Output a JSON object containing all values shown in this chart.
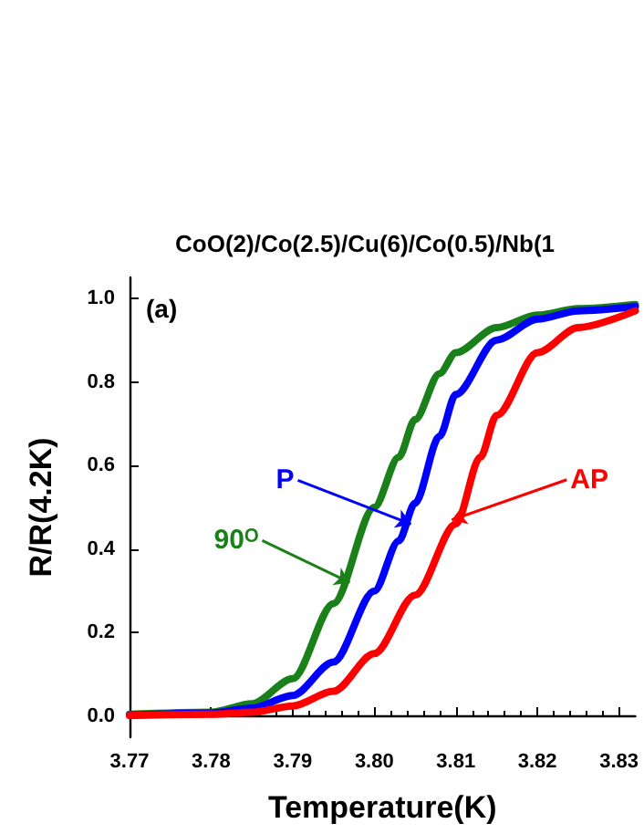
{
  "chart_data": {
    "type": "line",
    "title": "CoO(2)/Co(2.5)/Cu(6)/Co(0.5)/Nb(1",
    "xlabel": "Temperature(K)",
    "ylabel": "R/R(4.2K)",
    "xlim": [
      3.77,
      3.832
    ],
    "xticks": [
      {
        "value": 3.77,
        "label": "3.77"
      },
      {
        "value": 3.78,
        "label": "3.78"
      },
      {
        "value": 3.79,
        "label": "3.79"
      },
      {
        "value": 3.8,
        "label": "3.80"
      },
      {
        "value": 3.81,
        "label": "3.81"
      },
      {
        "value": 3.82,
        "label": "3.82"
      },
      {
        "value": 3.83,
        "label": "3.83"
      }
    ],
    "ylim": [
      -0.05,
      1.05
    ],
    "yticks": [
      {
        "value": 0,
        "label": "0.0"
      },
      {
        "value": 0.2,
        "label": "0.2"
      },
      {
        "value": 0.4,
        "label": "0.4"
      },
      {
        "value": 0.6,
        "label": "0.6"
      },
      {
        "value": 0.8,
        "label": "0.8"
      },
      {
        "value": 1,
        "label": "1.0"
      }
    ],
    "grid": false,
    "marker": "none",
    "line_style": "solid",
    "series": [
      {
        "color": "#1a801a",
        "x": [
          3.77,
          3.78,
          3.785,
          3.79,
          3.795,
          3.8,
          3.803,
          3.805,
          3.808,
          3.81,
          3.815,
          3.82,
          3.825,
          3.832
        ],
        "values": [
          0.005,
          0.01,
          0.03,
          0.09,
          0.27,
          0.5,
          0.62,
          0.71,
          0.82,
          0.87,
          0.93,
          0.96,
          0.975,
          0.985
        ]
      },
      {
        "color": "#0000ff",
        "x": [
          3.77,
          3.78,
          3.785,
          3.79,
          3.795,
          3.8,
          3.803,
          3.805,
          3.808,
          3.81,
          3.815,
          3.82,
          3.825,
          3.832
        ],
        "values": [
          0.003,
          0.008,
          0.02,
          0.05,
          0.13,
          0.3,
          0.42,
          0.51,
          0.67,
          0.77,
          0.9,
          0.95,
          0.97,
          0.98
        ]
      },
      {
        "color": "#ff0000",
        "x": [
          3.77,
          3.78,
          3.785,
          3.79,
          3.795,
          3.8,
          3.805,
          3.81,
          3.813,
          3.815,
          3.82,
          3.825,
          3.832
        ],
        "values": [
          0.002,
          0.005,
          0.01,
          0.025,
          0.06,
          0.15,
          0.29,
          0.46,
          0.62,
          0.72,
          0.87,
          0.93,
          0.97
        ]
      }
    ],
    "annotations": [
      "(a)",
      {
        "text": "P",
        "x": 3.8045,
        "y": 0.46
      },
      {
        "text": "AP",
        "x": 3.8095,
        "y": 0.47
      },
      {
        "text": "90ᴼ",
        "x": 3.797,
        "y": 0.32
      }
    ]
  }
}
